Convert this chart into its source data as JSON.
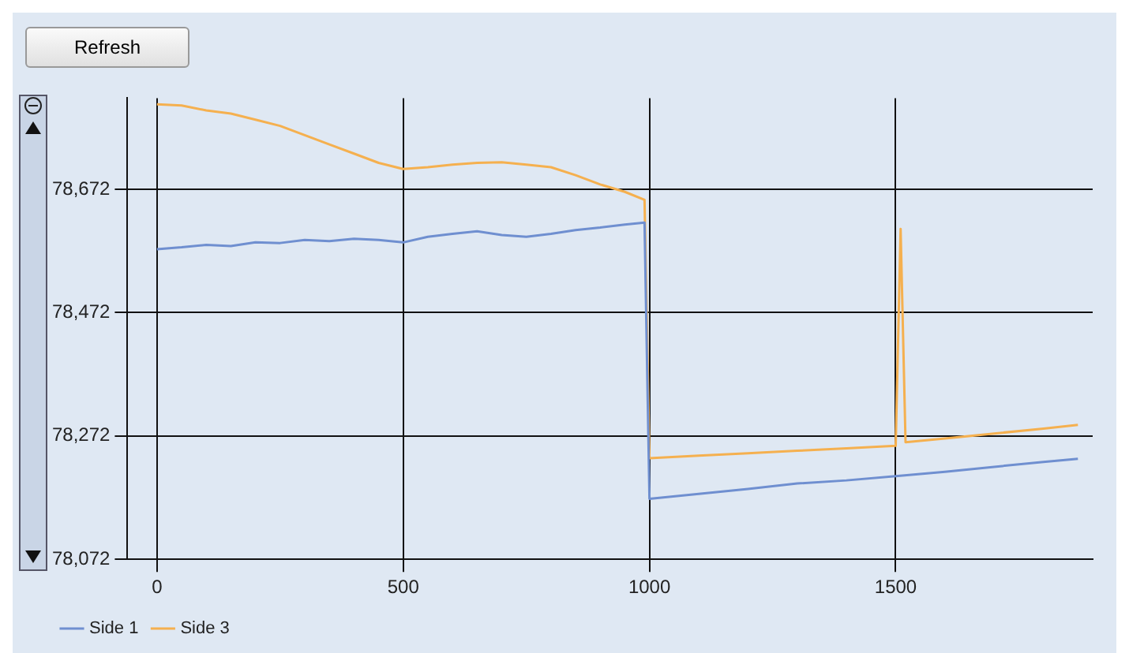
{
  "chart_data": {
    "type": "line",
    "annotations": [
      "Refresh"
    ],
    "xlim": [
      -60,
      1900
    ],
    "xticks": [
      0,
      500,
      1000,
      1500
    ],
    "ylim": [
      78072,
      78820
    ],
    "yticks": [
      {
        "value": 78072,
        "label": "78,072"
      },
      {
        "value": 78272,
        "label": "78,272"
      },
      {
        "value": 78472,
        "label": "78,472"
      },
      {
        "value": 78672,
        "label": "78,672"
      }
    ],
    "grid": true,
    "legend": "bottom left",
    "marker": "none",
    "series": [
      {
        "name": "Side 1",
        "color": "#6f8fd0",
        "x": [
          0,
          50,
          100,
          150,
          200,
          250,
          300,
          350,
          400,
          450,
          500,
          550,
          600,
          650,
          700,
          750,
          800,
          850,
          900,
          950,
          990,
          1000,
          1100,
          1200,
          1300,
          1400,
          1500,
          1600,
          1700,
          1800,
          1870
        ],
        "values": [
          78575,
          78578,
          78582,
          78580,
          78586,
          78585,
          78590,
          78588,
          78592,
          78590,
          78586,
          78595,
          78600,
          78604,
          78598,
          78595,
          78600,
          78606,
          78610,
          78615,
          78618,
          78170,
          78178,
          78186,
          78195,
          78200,
          78207,
          78214,
          78222,
          78230,
          78235
        ]
      },
      {
        "name": "Side 3",
        "color": "#f5b04f",
        "x": [
          0,
          50,
          100,
          150,
          200,
          250,
          300,
          350,
          400,
          450,
          500,
          550,
          600,
          650,
          700,
          750,
          800,
          850,
          900,
          950,
          990,
          1000,
          1100,
          1200,
          1300,
          1400,
          1500,
          1510,
          1520,
          1600,
          1700,
          1800,
          1870
        ],
        "values": [
          78810,
          78808,
          78800,
          78795,
          78785,
          78775,
          78760,
          78745,
          78730,
          78715,
          78705,
          78708,
          78712,
          78715,
          78716,
          78712,
          78708,
          78695,
          78680,
          78668,
          78655,
          78236,
          78240,
          78244,
          78248,
          78252,
          78256,
          78608,
          78262,
          78268,
          78276,
          78284,
          78290
        ]
      }
    ]
  }
}
